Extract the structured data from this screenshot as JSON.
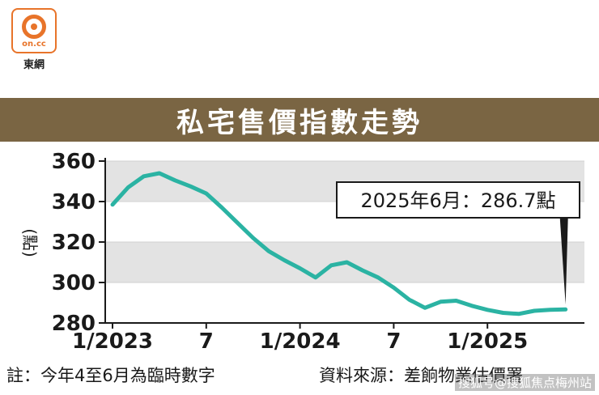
{
  "logo": {
    "domain": "on.cc",
    "name": "東網"
  },
  "chart_data": {
    "type": "line",
    "title": "私宅售價指數走勢",
    "ylabel": "(點)",
    "ylim": [
      280,
      360
    ],
    "yticks": [
      280,
      300,
      320,
      340,
      360
    ],
    "x_tick_labels": [
      "1/2023",
      "7",
      "1/2024",
      "7",
      "1/2025"
    ],
    "x_tick_months": [
      0,
      6,
      12,
      18,
      24
    ],
    "grid_bands": true,
    "series": [
      {
        "color": "#2bb3a3",
        "months": [
          0,
          1,
          2,
          3,
          4,
          5,
          6,
          7,
          8,
          9,
          10,
          11,
          12,
          13,
          14,
          15,
          16,
          17,
          18,
          19,
          20,
          21,
          22,
          23,
          24,
          25,
          26,
          27,
          28,
          29
        ],
        "values": [
          338.5,
          347.0,
          352.5,
          354.0,
          350.5,
          347.5,
          344.0,
          337.0,
          329.5,
          322.0,
          315.5,
          311.0,
          307.0,
          302.5,
          308.5,
          310.0,
          306.0,
          302.5,
          297.5,
          291.5,
          287.5,
          290.5,
          291.0,
          288.5,
          286.5,
          285.0,
          284.5,
          286.0,
          286.5,
          286.7
        ]
      }
    ],
    "annotation": {
      "text": "2025年6月：286.7點"
    }
  },
  "footer": {
    "note": "註：今年4至6月為臨時數字",
    "source": "資料來源：差餉物業估價署"
  },
  "watermark": "搜狐号@搜狐焦点梅州站"
}
